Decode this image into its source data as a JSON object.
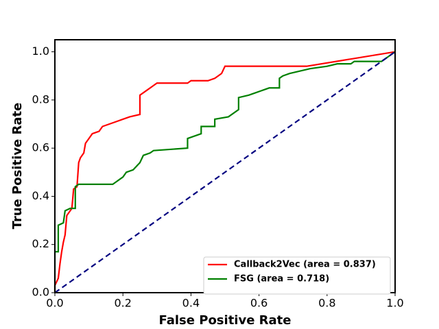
{
  "chart_data": {
    "type": "line",
    "xlabel": "False Positive Rate",
    "ylabel": "True Positive Rate",
    "xlim": [
      0,
      1
    ],
    "ylim": [
      0,
      1.05
    ],
    "xticks": [
      {
        "value": 0,
        "label": "0.0"
      },
      0.2,
      0.4,
      0.6,
      0.8,
      {
        "value": 1,
        "label": "1.0"
      }
    ],
    "yticks": [
      {
        "value": 0,
        "label": "0.0"
      },
      0.2,
      0.4,
      0.6,
      0.8,
      {
        "value": 1,
        "label": "1.0"
      }
    ],
    "legend": "lower right",
    "series": [
      {
        "name": "Callback2Vec (area = 0.837)",
        "color": "#ff0000",
        "x": [
          0,
          0,
          0.01,
          0.015,
          0.02,
          0.025,
          0.03,
          0.035,
          0.045,
          0.05,
          0.055,
          0.065,
          0.07,
          0.075,
          0.085,
          0.09,
          0.1,
          0.11,
          0.13,
          0.14,
          0.16,
          0.18,
          0.2,
          0.22,
          0.25,
          0.25,
          0.27,
          0.29,
          0.3,
          0.39,
          0.4,
          0.45,
          0.47,
          0.48,
          0.49,
          0.5,
          0.74,
          1
        ],
        "values": [
          0,
          0.03,
          0.06,
          0.12,
          0.17,
          0.21,
          0.24,
          0.32,
          0.34,
          0.35,
          0.43,
          0.44,
          0.54,
          0.56,
          0.58,
          0.62,
          0.64,
          0.66,
          0.67,
          0.69,
          0.7,
          0.71,
          0.72,
          0.73,
          0.74,
          0.82,
          0.84,
          0.86,
          0.87,
          0.87,
          0.88,
          0.88,
          0.89,
          0.9,
          0.91,
          0.94,
          0.94,
          1
        ]
      },
      {
        "name": "FSG (area = 0.718)",
        "color": "#008000",
        "x": [
          0,
          0,
          0.01,
          0.01,
          0.025,
          0.03,
          0.045,
          0.06,
          0.06,
          0.07,
          0.17,
          0.18,
          0.19,
          0.2,
          0.21,
          0.23,
          0.25,
          0.26,
          0.28,
          0.29,
          0.39,
          0.39,
          0.41,
          0.43,
          0.43,
          0.47,
          0.47,
          0.51,
          0.54,
          0.54,
          0.57,
          0.59,
          0.61,
          0.63,
          0.66,
          0.66,
          0.67,
          0.69,
          0.72,
          0.75,
          0.8,
          0.83,
          0.87,
          0.88,
          0.96,
          0.98,
          1
        ],
        "values": [
          0,
          0.17,
          0.17,
          0.28,
          0.29,
          0.34,
          0.35,
          0.35,
          0.44,
          0.45,
          0.45,
          0.46,
          0.47,
          0.48,
          0.5,
          0.51,
          0.54,
          0.57,
          0.58,
          0.59,
          0.6,
          0.64,
          0.65,
          0.66,
          0.69,
          0.69,
          0.72,
          0.73,
          0.76,
          0.81,
          0.82,
          0.83,
          0.84,
          0.85,
          0.85,
          0.89,
          0.9,
          0.91,
          0.92,
          0.93,
          0.94,
          0.95,
          0.95,
          0.96,
          0.96,
          0.98,
          1
        ]
      }
    ],
    "diagonal": {
      "x": [
        0,
        1
      ],
      "values": [
        0,
        1
      ],
      "color": "#000080"
    }
  }
}
